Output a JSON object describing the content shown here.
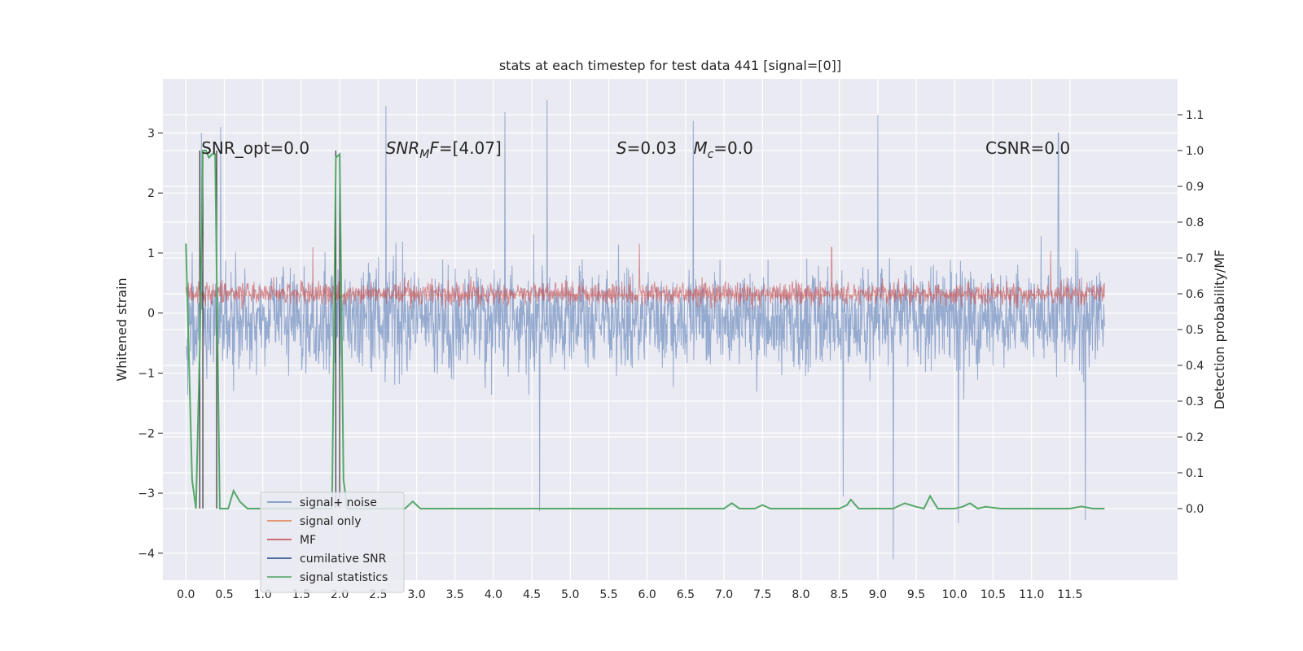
{
  "chart_data": {
    "type": "line",
    "title": "stats at each timestep for test data 441 [signal=[0]]",
    "xlabel": "",
    "ylabel_left": "Whitened strain",
    "ylabel_right": "Detection probability/MF",
    "xlim": [
      -0.3,
      12.9
    ],
    "ylim_left": [
      -4.45,
      3.9
    ],
    "ylim_right": [
      -0.2,
      1.2
    ],
    "x_ticks": [
      0.0,
      0.5,
      1.0,
      1.5,
      2.0,
      2.5,
      3.0,
      3.5,
      4.0,
      4.5,
      5.0,
      5.5,
      6.0,
      6.5,
      7.0,
      7.5,
      8.0,
      8.5,
      9.0,
      9.5,
      10.0,
      10.5,
      11.0,
      11.5
    ],
    "x_tick_labels": [
      "0.0",
      "0.5",
      "1.0",
      "1.5",
      "2.0",
      "2.5",
      "3.0",
      "3.5",
      "4.0",
      "4.5",
      "5.0",
      "5.5",
      "6.0",
      "6.5",
      "7.0",
      "7.5",
      "8.0",
      "8.5",
      "9.0",
      "9.5",
      "10.0",
      "10.5",
      "11.0",
      "11.5"
    ],
    "y_left_ticks": [
      3,
      2,
      1,
      0,
      -1,
      -2,
      -3,
      -4
    ],
    "y_left_tick_labels": [
      "3",
      "2",
      "1",
      "0",
      "−1",
      "−2",
      "−3",
      "−4"
    ],
    "y_right_ticks": [
      1.1,
      1.0,
      0.9,
      0.8,
      0.7,
      0.6,
      0.5,
      0.4,
      0.3,
      0.2,
      0.1,
      0.0
    ],
    "y_right_tick_labels": [
      "1.1",
      "1.0",
      "0.9",
      "0.8",
      "0.7",
      "0.6",
      "0.5",
      "0.4",
      "0.3",
      "0.2",
      "0.1",
      "0.0"
    ],
    "grid": true,
    "legend_placement": "lower-left",
    "annotations": [
      {
        "text": "SNR_opt=0.0",
        "x": 0.2,
        "y": 2.75
      },
      {
        "text": "SNR",
        "sub": "M",
        "after": "F=[4.07]",
        "x": 2.6,
        "y": 2.75
      },
      {
        "text": "S",
        "after": "=0.03",
        "x": 5.6,
        "y": 2.75
      },
      {
        "text": "M",
        "sub": "c",
        "after": "=0.0",
        "x": 6.6,
        "y": 2.75
      },
      {
        "text": "CSNR=0.0",
        "x": 10.4,
        "y": 2.75
      }
    ],
    "series": [
      {
        "name": "signal+ noise",
        "color": "#4c72b0",
        "axis": "left",
        "style": "noise-band",
        "x_range": [
          0.0,
          11.95
        ],
        "center": -0.1,
        "typical_amplitude": 1.6,
        "peaks": [
          {
            "x": 0.2,
            "y": 3.0
          },
          {
            "x": 0.45,
            "y": 3.1
          },
          {
            "x": 2.6,
            "y": 3.45
          },
          {
            "x": 4.15,
            "y": 3.35
          },
          {
            "x": 4.7,
            "y": 3.55
          },
          {
            "x": 9.0,
            "y": 3.3
          },
          {
            "x": 6.6,
            "y": 3.2
          },
          {
            "x": 11.35,
            "y": 3.0
          },
          {
            "x": 9.2,
            "y": -4.1
          },
          {
            "x": 10.05,
            "y": -3.5
          },
          {
            "x": 11.7,
            "y": -3.45
          },
          {
            "x": 4.6,
            "y": -3.3
          },
          {
            "x": 8.55,
            "y": -3.05
          }
        ]
      },
      {
        "name": "signal only",
        "color": "#dd8452",
        "axis": "left",
        "style": "flat",
        "x_range": [
          0.0,
          11.95
        ],
        "value": 0.3
      },
      {
        "name": "MF",
        "color": "#c44e52",
        "axis": "right",
        "style": "noise-band",
        "x_range": [
          0.0,
          11.95
        ],
        "center": 0.6,
        "typical_amplitude": 0.06,
        "peaks": [
          {
            "x": 1.65,
            "y": 0.73
          },
          {
            "x": 5.9,
            "y": 0.74
          },
          {
            "x": 8.4,
            "y": 0.73
          },
          {
            "x": 11.25,
            "y": 0.72
          }
        ]
      },
      {
        "name": "cumilative SNR",
        "color": "#4c72b0",
        "axis": "right",
        "style": "spikes",
        "x": [
          0.18,
          0.22,
          0.4,
          1.95,
          2.0
        ],
        "y": [
          1.0,
          1.0,
          1.0,
          1.0,
          0.99
        ]
      },
      {
        "name": "signal statistics",
        "color": "#55a868",
        "axis": "right",
        "x": [
          0.0,
          0.08,
          0.13,
          0.18,
          0.22,
          0.26,
          0.3,
          0.34,
          0.38,
          0.4,
          0.44,
          0.5,
          0.55,
          0.62,
          0.7,
          0.8,
          0.95,
          1.2,
          1.5,
          1.8,
          1.9,
          1.95,
          2.0,
          2.05,
          2.1,
          2.2,
          2.5,
          2.85,
          2.95,
          3.05,
          3.5,
          4.0,
          5.0,
          6.0,
          7.0,
          7.1,
          7.2,
          7.4,
          7.5,
          7.6,
          8.0,
          8.5,
          8.6,
          8.65,
          8.75,
          9.0,
          9.2,
          9.35,
          9.5,
          9.6,
          9.68,
          9.78,
          10.0,
          10.1,
          10.2,
          10.3,
          10.4,
          10.6,
          11.0,
          11.5,
          11.65,
          11.8,
          11.95
        ],
        "y": [
          0.74,
          0.08,
          0.0,
          0.45,
          1.0,
          1.0,
          0.98,
          0.99,
          0.99,
          0.65,
          0.0,
          0.0,
          0.0,
          0.05,
          0.02,
          0.0,
          0.0,
          0.0,
          0.0,
          0.0,
          0.0,
          0.98,
          0.99,
          0.08,
          0.0,
          0.0,
          0.0,
          0.0,
          0.02,
          0.0,
          0.0,
          0.0,
          0.0,
          0.0,
          0.0,
          0.015,
          0.0,
          0.0,
          0.01,
          0.0,
          0.0,
          0.0,
          0.01,
          0.025,
          0.0,
          0.0,
          0.0,
          0.015,
          0.005,
          0.0,
          0.035,
          0.0,
          0.0,
          0.005,
          0.015,
          0.0,
          0.005,
          0.0,
          0.0,
          0.0,
          0.006,
          0.0,
          0.0
        ]
      }
    ]
  }
}
